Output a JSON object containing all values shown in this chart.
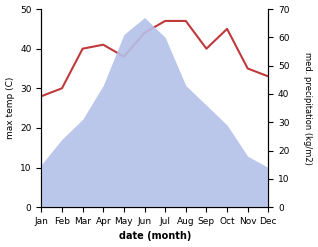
{
  "months": [
    "Jan",
    "Feb",
    "Mar",
    "Apr",
    "May",
    "Jun",
    "Jul",
    "Aug",
    "Sep",
    "Oct",
    "Nov",
    "Dec"
  ],
  "temperature": [
    28,
    30,
    40,
    41,
    38,
    44,
    47,
    47,
    40,
    45,
    35,
    33
  ],
  "precipitation_mm": [
    15,
    24,
    31,
    43,
    61,
    67,
    60,
    43,
    36,
    29,
    18,
    14
  ],
  "temp_ylim": [
    0,
    50
  ],
  "precip_ylim": [
    0,
    70
  ],
  "temp_color": "#c0393b",
  "precip_color_fill": "#b3c0e8",
  "title": "",
  "xlabel": "date (month)",
  "ylabel_left": "max temp (C)",
  "ylabel_right": "med. precipitation (kg/m2)",
  "background_color": "#ffffff"
}
